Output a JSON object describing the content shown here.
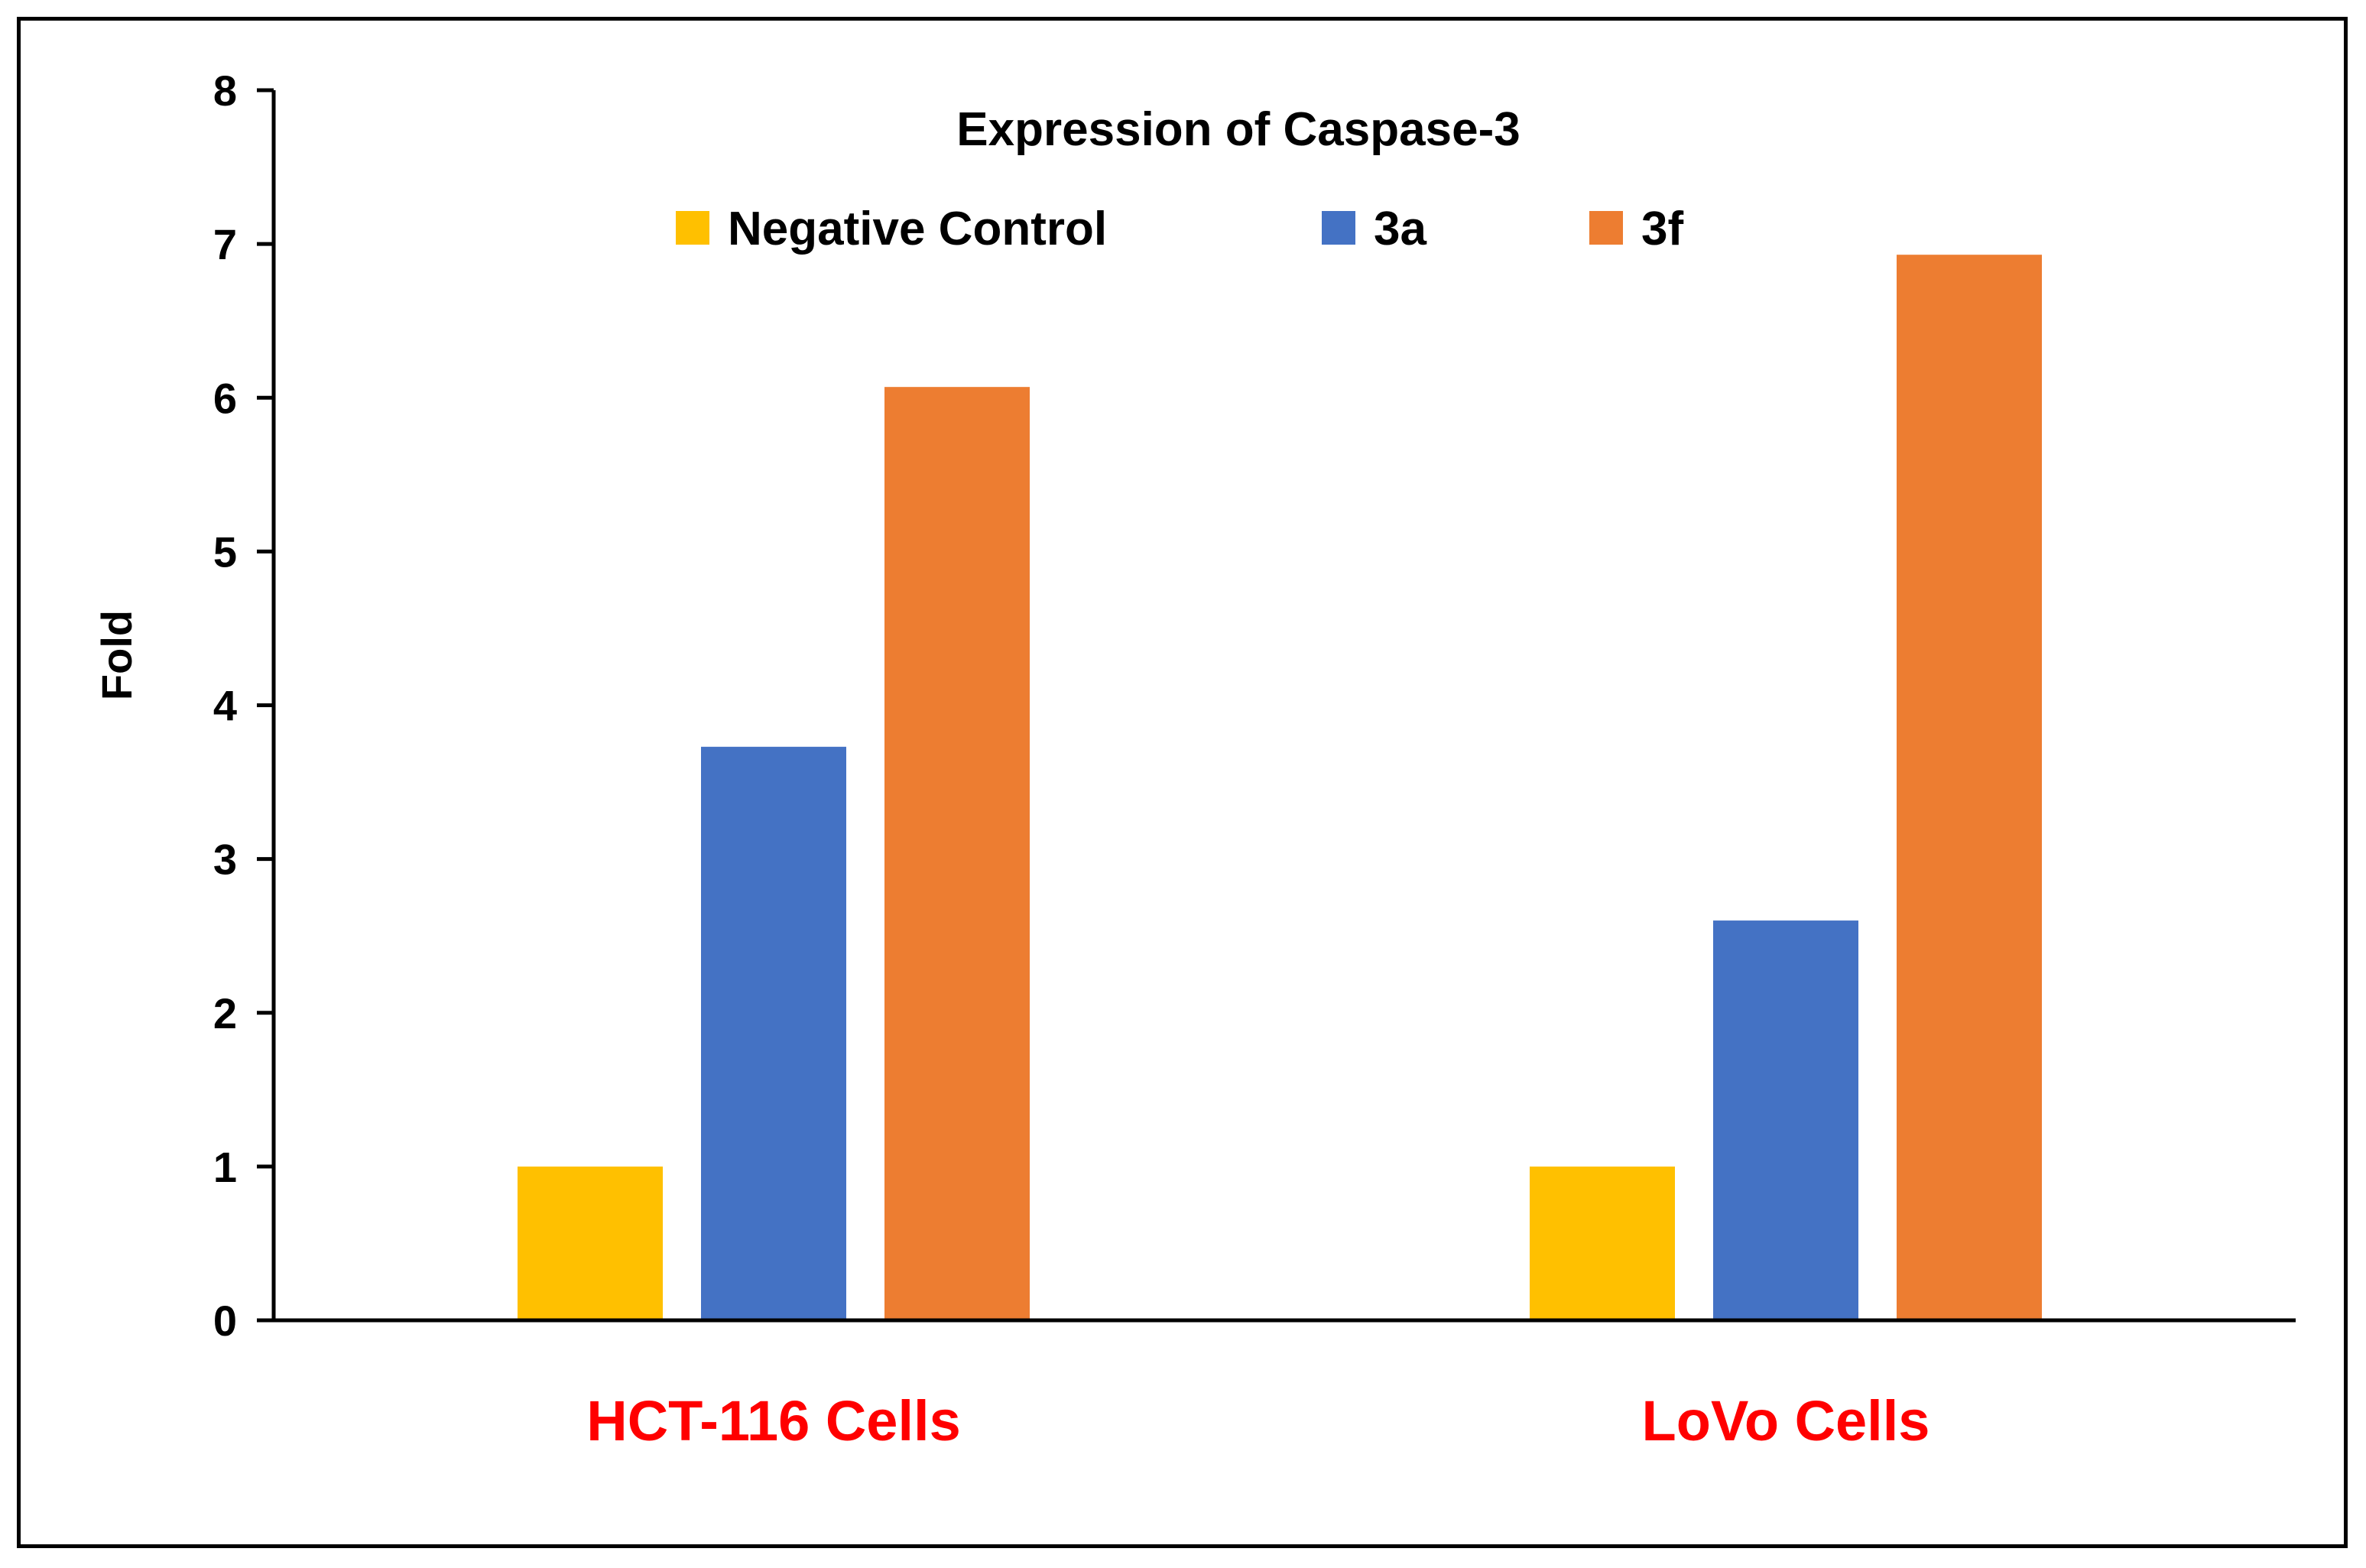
{
  "chart_data": {
    "type": "bar",
    "title": "Expression of Caspase-3",
    "xlabel": "",
    "ylabel": "Fold",
    "ylim": [
      0,
      8
    ],
    "yticks": [
      0,
      1,
      2,
      3,
      4,
      5,
      6,
      7,
      8
    ],
    "grid": false,
    "legend_position": "top-center",
    "categories": [
      "HCT-116 Cells",
      "LoVo Cells"
    ],
    "category_label_color": "#ff0000",
    "series": [
      {
        "name": "Negative Control",
        "color": "#ffc000",
        "values": [
          1.0,
          1.0
        ]
      },
      {
        "name": "3a",
        "color": "#4472c4",
        "values": [
          3.73,
          2.6
        ]
      },
      {
        "name": "3f",
        "color": "#ed7d31",
        "values": [
          6.07,
          6.93
        ]
      }
    ]
  }
}
